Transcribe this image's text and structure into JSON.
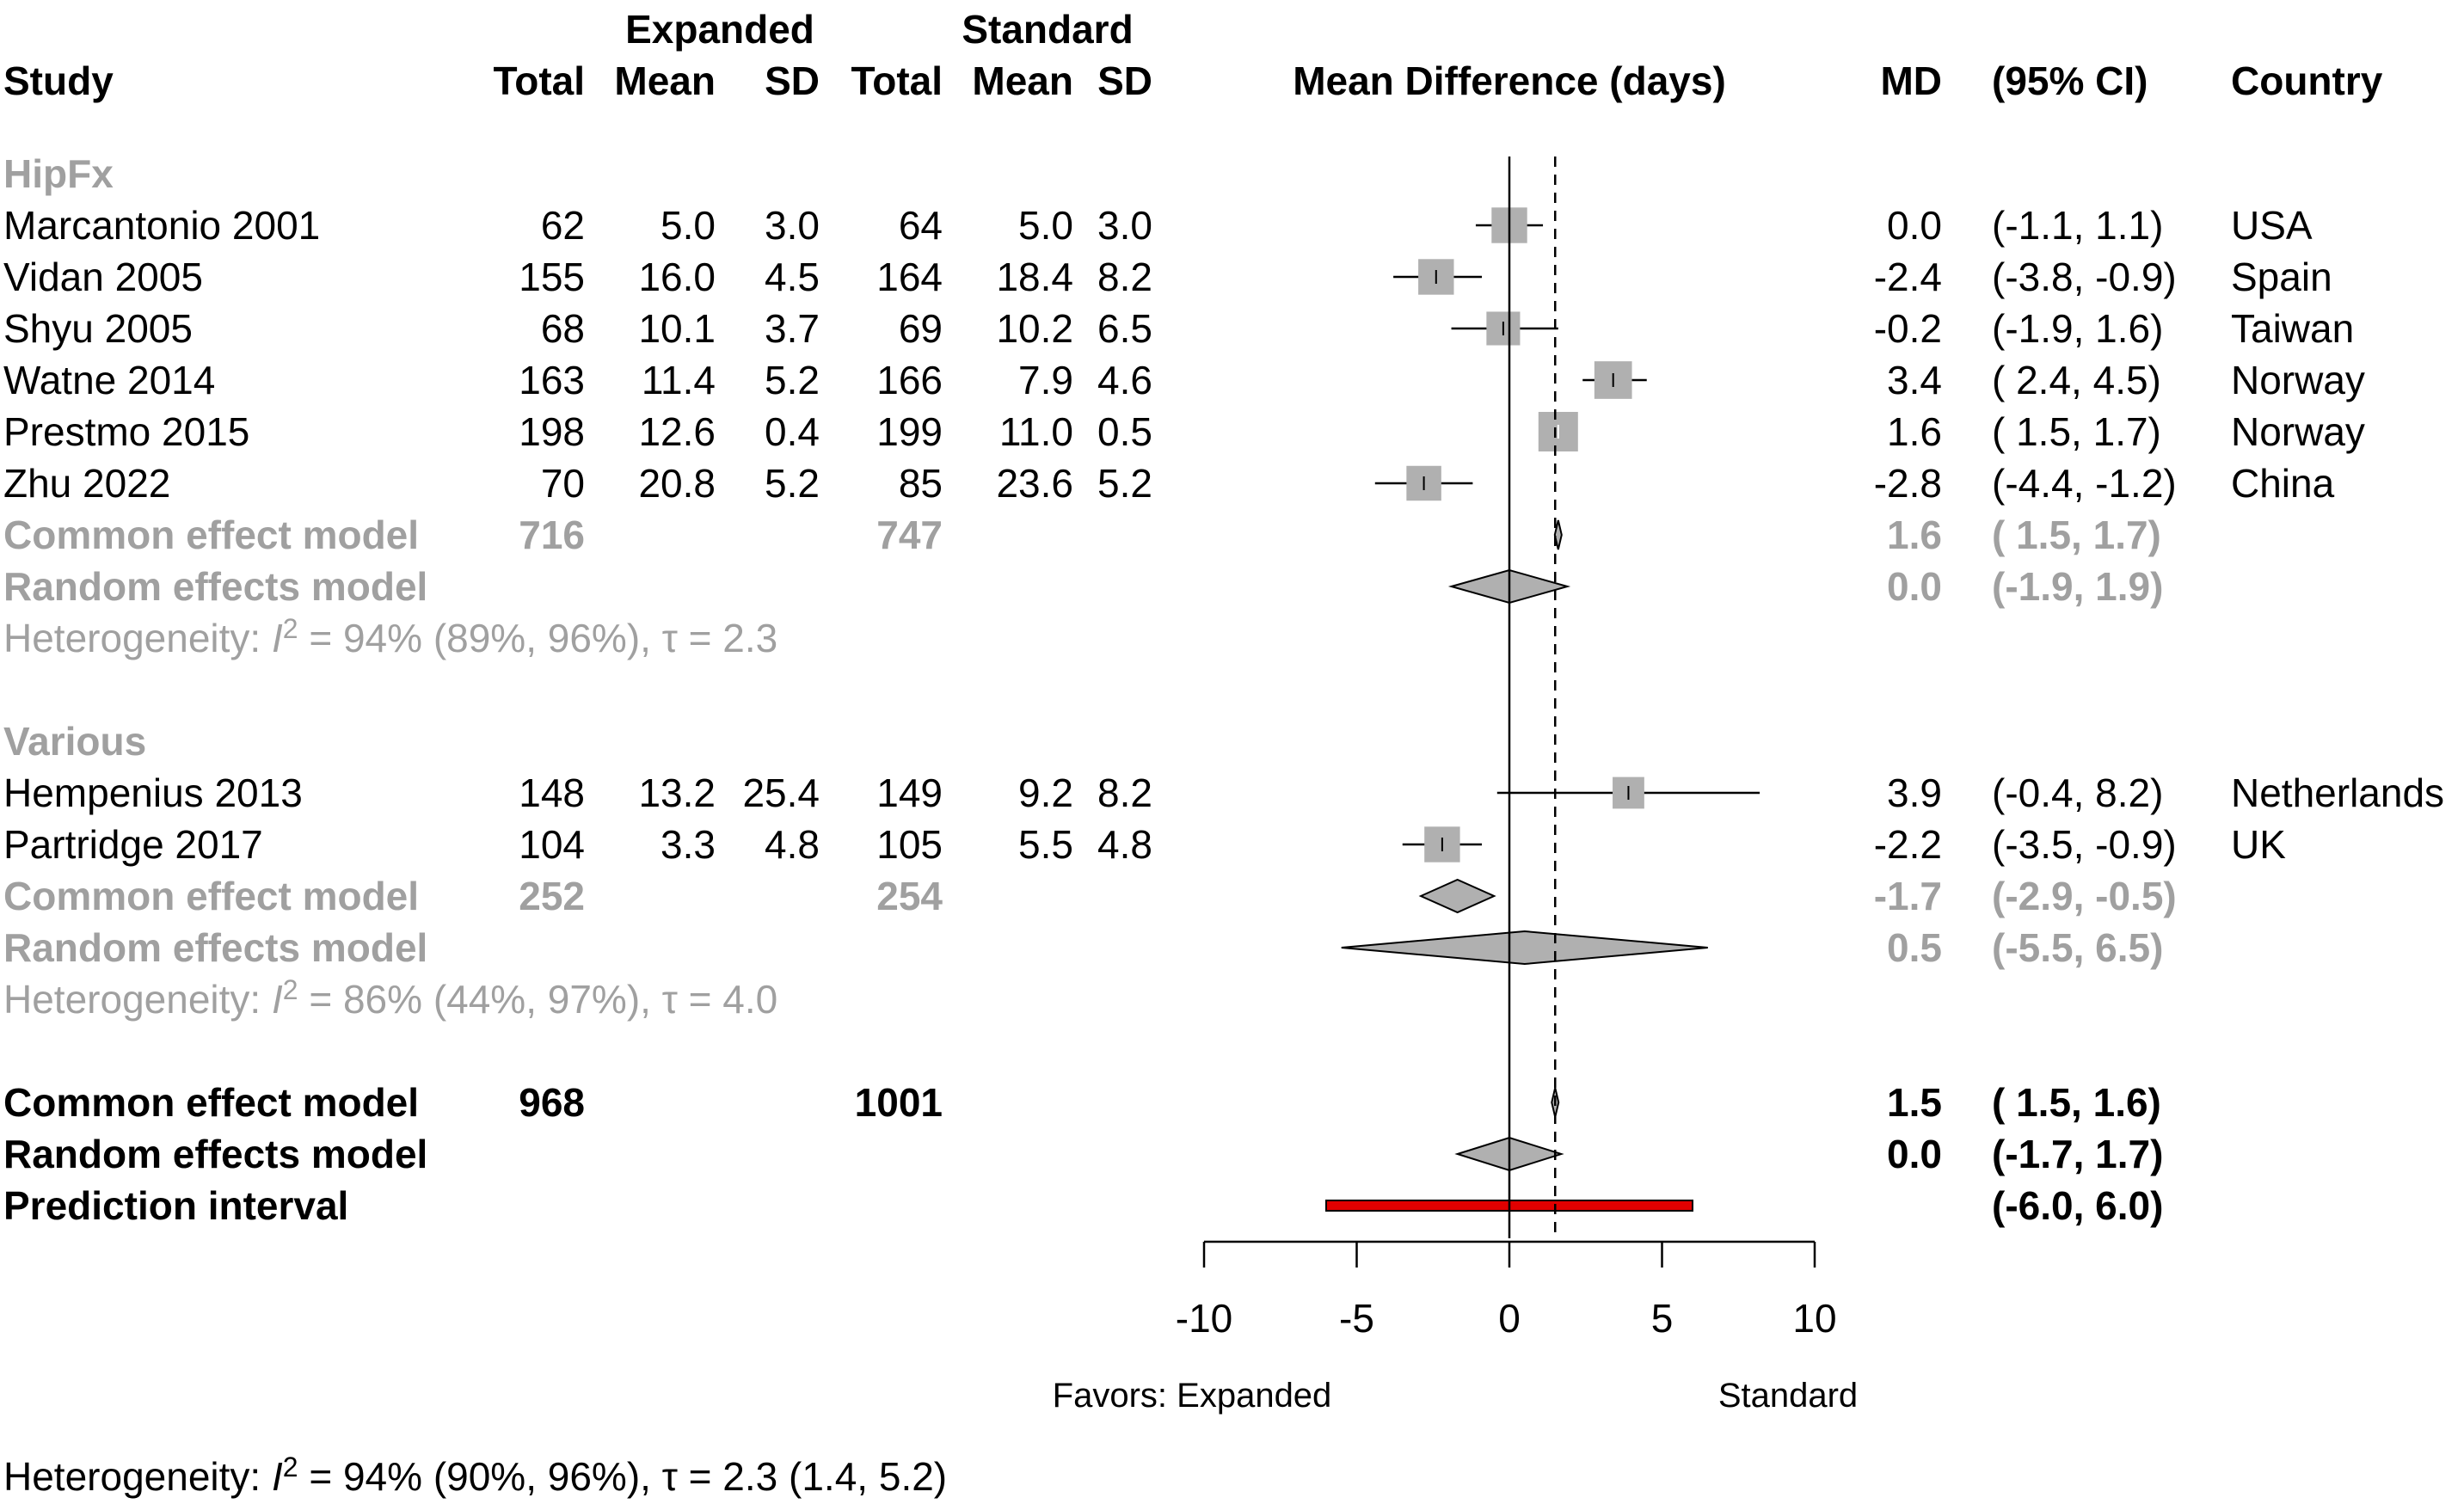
{
  "header": {
    "group_expanded": "Expanded",
    "group_standard": "Standard",
    "study": "Study",
    "total": "Total",
    "mean": "Mean",
    "sd": "SD",
    "plot_title": "Mean Difference (days)",
    "md": "MD",
    "ci": "(95% CI)",
    "country": "Country"
  },
  "rows": [
    {
      "kind": "group",
      "label": "HipFx"
    },
    {
      "kind": "study",
      "label": "Marcantonio 2001",
      "e_total": "62",
      "e_mean": "5.0",
      "e_sd": "3.0",
      "c_total": "64",
      "c_mean": "5.0",
      "c_sd": "3.0",
      "md_text": "0.0",
      "ci_text": "(-1.1,  1.1)",
      "country": "USA",
      "md": 0.0,
      "lo": -1.1,
      "hi": 1.1,
      "weight": 0.9
    },
    {
      "kind": "study",
      "label": "Vidan 2005",
      "e_total": "155",
      "e_mean": "16.0",
      "e_sd": "4.5",
      "c_total": "164",
      "c_mean": "18.4",
      "c_sd": "8.2",
      "md_text": "-2.4",
      "ci_text": "(-3.8, -0.9)",
      "country": "Spain",
      "md": -2.4,
      "lo": -3.8,
      "hi": -0.9,
      "weight": 0.9
    },
    {
      "kind": "study",
      "label": "Shyu 2005",
      "e_total": "68",
      "e_mean": "10.1",
      "e_sd": "3.7",
      "c_total": "69",
      "c_mean": "10.2",
      "c_sd": "6.5",
      "md_text": "-0.2",
      "ci_text": "(-1.9,  1.6)",
      "country": "Taiwan",
      "md": -0.2,
      "lo": -1.9,
      "hi": 1.6,
      "weight": 0.85
    },
    {
      "kind": "study",
      "label": "Watne 2014",
      "e_total": "163",
      "e_mean": "11.4",
      "e_sd": "5.2",
      "c_total": "166",
      "c_mean": "7.9",
      "c_sd": "4.6",
      "md_text": "3.4",
      "ci_text": "( 2.4,  4.5)",
      "country": "Norway",
      "md": 3.4,
      "lo": 2.4,
      "hi": 4.5,
      "weight": 0.95
    },
    {
      "kind": "study",
      "label": "Prestmo 2015",
      "e_total": "198",
      "e_mean": "12.6",
      "e_sd": "0.4",
      "c_total": "199",
      "c_mean": "11.0",
      "c_sd": "0.5",
      "md_text": "1.6",
      "ci_text": "( 1.5,  1.7)",
      "country": "Norway",
      "md": 1.6,
      "lo": 1.5,
      "hi": 1.7,
      "weight": 1.0
    },
    {
      "kind": "study",
      "label": "Zhu 2022",
      "e_total": "70",
      "e_mean": "20.8",
      "e_sd": "5.2",
      "c_total": "85",
      "c_mean": "23.6",
      "c_sd": "5.2",
      "md_text": "-2.8",
      "ci_text": "(-4.4, -1.2)",
      "country": "China",
      "md": -2.8,
      "lo": -4.4,
      "hi": -1.2,
      "weight": 0.88
    },
    {
      "kind": "common",
      "label": "Common effect model",
      "e_total": "716",
      "c_total": "747",
      "md_text": "1.6",
      "ci_text": "( 1.5,  1.7)",
      "md": 1.6,
      "lo": 1.5,
      "hi": 1.7
    },
    {
      "kind": "random",
      "label": "Random effects model",
      "md_text": "0.0",
      "ci_text": "(-1.9,  1.9)",
      "md": 0.0,
      "lo": -1.9,
      "hi": 1.9
    },
    {
      "kind": "het",
      "prefix": "Heterogeneity: ",
      "i_symbol": "I",
      "sup": "2",
      "suffix": " = 94% (89%, 96%), τ = 2.3"
    },
    {
      "kind": "blank"
    },
    {
      "kind": "group",
      "label": "Various"
    },
    {
      "kind": "study",
      "label": "Hempenius 2013",
      "e_total": "148",
      "e_mean": "13.2",
      "e_sd": "25.4",
      "c_total": "149",
      "c_mean": "9.2",
      "c_sd": "8.2",
      "md_text": "3.9",
      "ci_text": "(-0.4,  8.2)",
      "country": "Netherlands",
      "md": 3.9,
      "lo": -0.4,
      "hi": 8.2,
      "weight": 0.8
    },
    {
      "kind": "study",
      "label": "Partridge 2017",
      "e_total": "104",
      "e_mean": "3.3",
      "e_sd": "4.8",
      "c_total": "105",
      "c_mean": "5.5",
      "c_sd": "4.8",
      "md_text": "-2.2",
      "ci_text": "(-3.5, -0.9)",
      "country": "UK",
      "md": -2.2,
      "lo": -3.5,
      "hi": -0.9,
      "weight": 0.9
    },
    {
      "kind": "common",
      "label": "Common effect model",
      "e_total": "252",
      "c_total": "254",
      "md_text": "-1.7",
      "ci_text": "(-2.9, -0.5)",
      "md": -1.7,
      "lo": -2.9,
      "hi": -0.5
    },
    {
      "kind": "random",
      "label": "Random effects model",
      "md_text": "0.5",
      "ci_text": "(-5.5,  6.5)",
      "md": 0.5,
      "lo": -5.5,
      "hi": 6.5
    },
    {
      "kind": "het",
      "prefix": "Heterogeneity: ",
      "i_symbol": "I",
      "sup": "2",
      "suffix": " = 86% (44%, 97%), τ = 4.0"
    },
    {
      "kind": "blank"
    },
    {
      "kind": "overall_common",
      "label": "Common effect model",
      "e_total": "968",
      "c_total": "1001",
      "md_text": "1.5",
      "ci_text": "( 1.5,  1.6)",
      "md": 1.5,
      "lo": 1.5,
      "hi": 1.6
    },
    {
      "kind": "overall_random",
      "label": "Random effects model",
      "md_text": "0.0",
      "ci_text": "(-1.7,  1.7)",
      "md": 0.0,
      "lo": -1.7,
      "hi": 1.7
    },
    {
      "kind": "prediction",
      "label": "Prediction interval",
      "ci_text": "(-6.0,  6.0)",
      "lo": -6.0,
      "hi": 6.0
    }
  ],
  "axis": {
    "ticks": [
      -10,
      -5,
      0,
      5,
      10
    ],
    "tick_labels": [
      "-10",
      "-5",
      "0",
      "5",
      "10"
    ],
    "xlim": [
      -10,
      10
    ],
    "favors_left": "Favors: Expanded",
    "favors_right": "Standard"
  },
  "footer": {
    "prefix": "Heterogeneity: ",
    "i_symbol": "I",
    "sup": "2",
    "suffix": " = 94% (90%, 96%), τ = 2.3 (1.4, 5.2)"
  },
  "colors": {
    "grey_text": "#a0a0a0",
    "box_fill": "#b0b0b0",
    "diamond_fill": "#b0b0b0",
    "prediction_fill": "#e00000"
  },
  "chart_data": {
    "type": "forest",
    "xlabel": "Mean Difference (days)",
    "xlim": [
      -10,
      10
    ],
    "reference_line": 0,
    "common_effect_line": 1.5,
    "groups": [
      {
        "name": "HipFx",
        "studies": [
          "Marcantonio 2001",
          "Vidan 2005",
          "Shyu 2005",
          "Watne 2014",
          "Prestmo 2015",
          "Zhu 2022"
        ]
      },
      {
        "name": "Various",
        "studies": [
          "Hempenius 2013",
          "Partridge 2017"
        ]
      }
    ],
    "overall": {
      "common": [
        1.5,
        1.5,
        1.6
      ],
      "random": [
        0.0,
        -1.7,
        1.7
      ],
      "prediction": [
        -6.0,
        6.0
      ]
    }
  }
}
